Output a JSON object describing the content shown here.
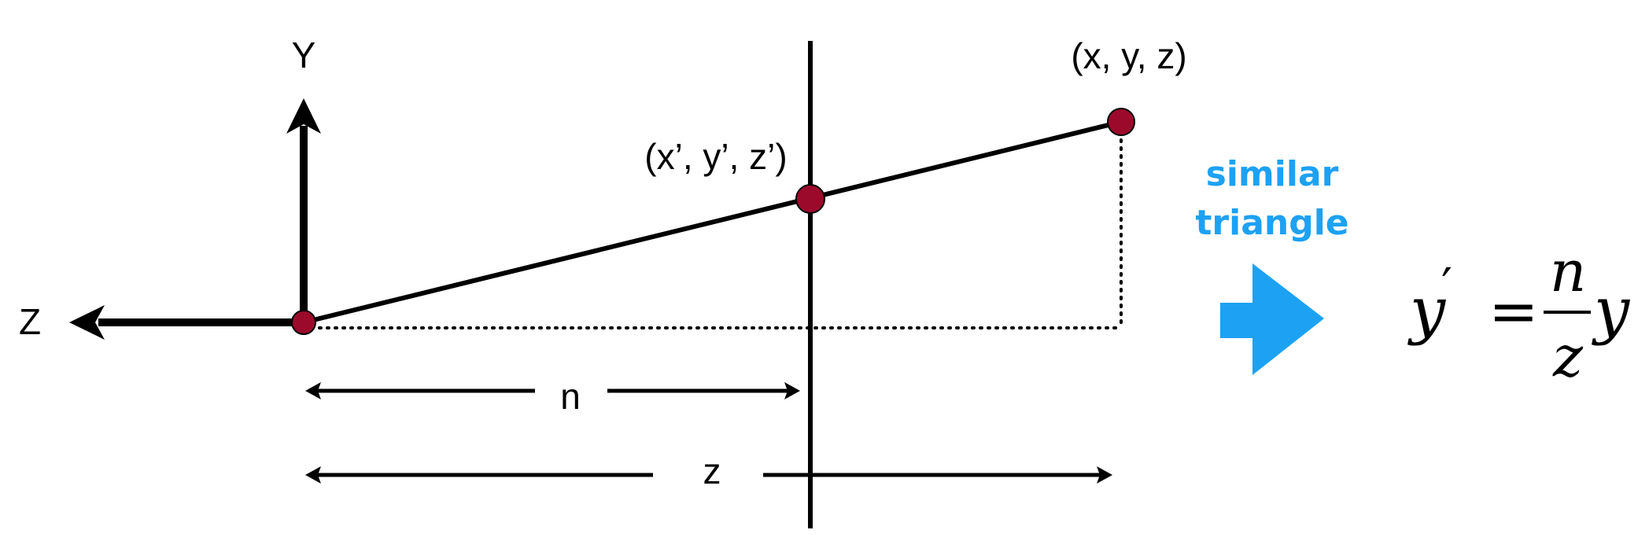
{
  "axes": {
    "y_label": "Y",
    "z_label": "Z"
  },
  "points": {
    "far_point_label": "(x, y, z)",
    "projected_point_label": "(x’, y’, z’)"
  },
  "dimensions": {
    "near_label": "n",
    "depth_label": "z"
  },
  "annotation": {
    "line1": "similar",
    "line2": "triangle",
    "color": "#1DA1F2"
  },
  "formula": {
    "lhs": "y",
    "prime": "′",
    "equals": "=",
    "numerator": "n",
    "denominator": "z",
    "rhs": "y"
  },
  "colors": {
    "point_fill": "#9B0A2A",
    "line": "#000000"
  }
}
